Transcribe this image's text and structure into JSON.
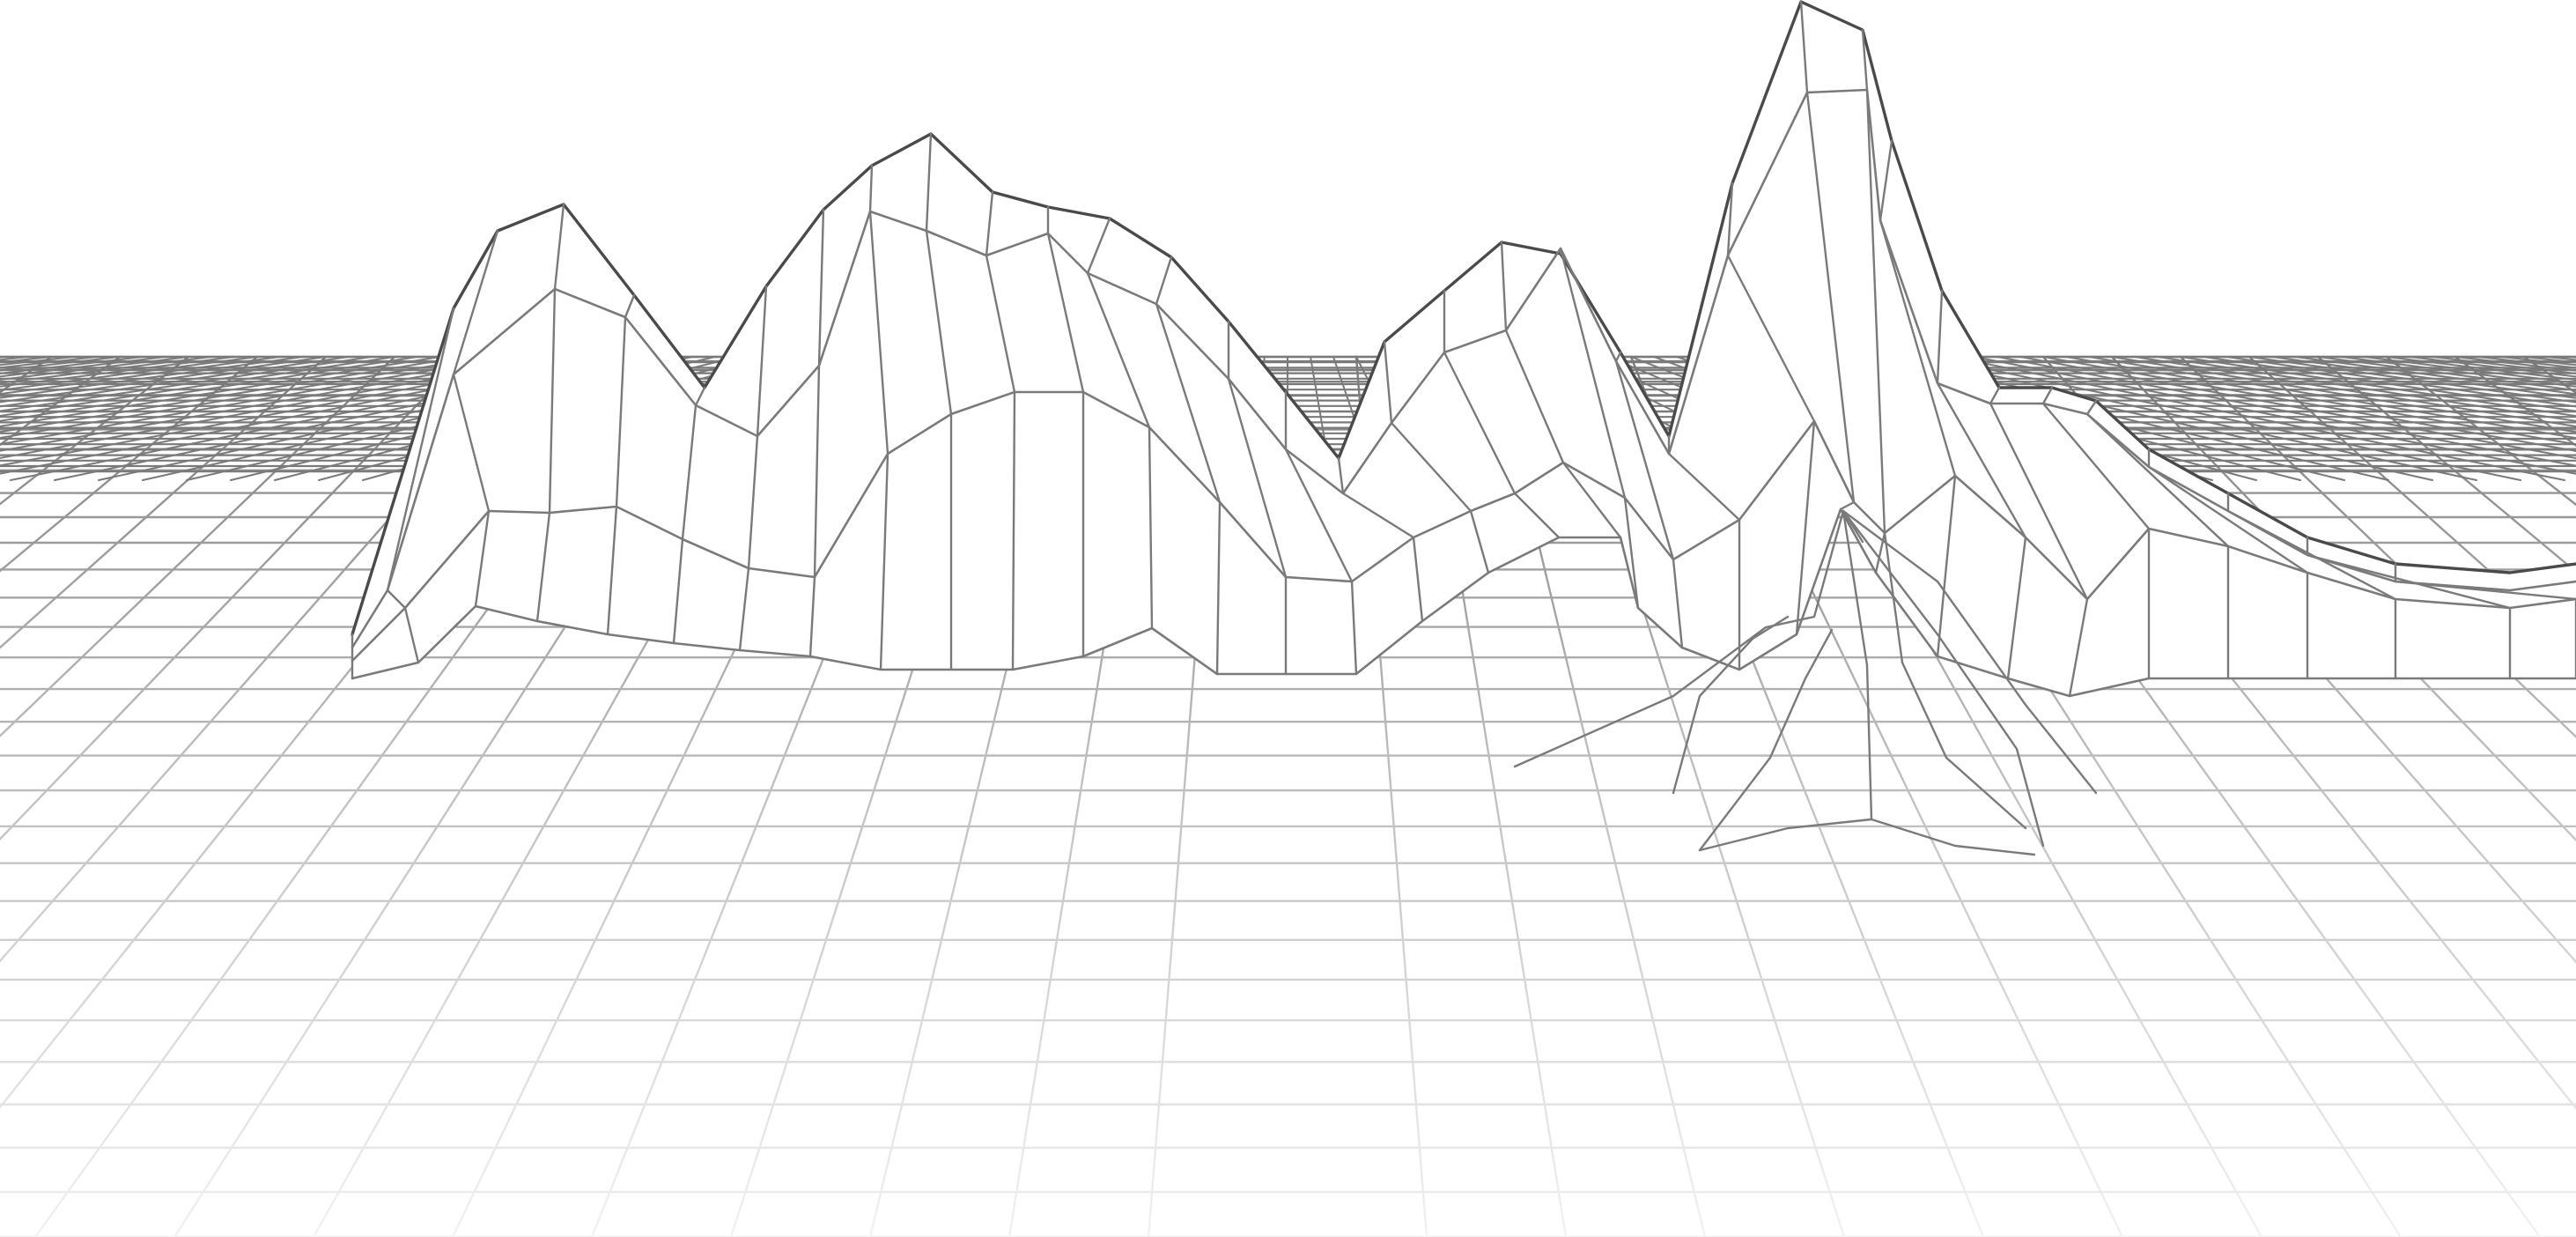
{
  "scene": {
    "subject": "wireframe-terrain",
    "style": "line-art",
    "colors": {
      "background": "#ffffff",
      "line_dark": "#4a4a4a",
      "line_mid": "#7a7a7a",
      "line_light": "#d4d4d4",
      "line_faint": "#eeeeee"
    }
  }
}
